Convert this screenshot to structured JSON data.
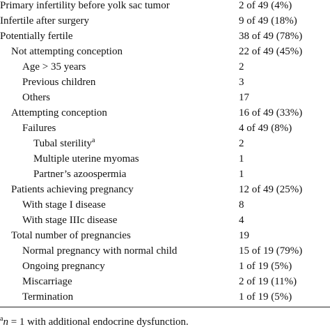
{
  "table": {
    "rows": [
      [
        "Primary infertility before yolk sac tumor",
        "2 of 49 (4%)"
      ],
      [
        "Infertile after surgery",
        "9 of 49 (18%)"
      ],
      [
        "Potentially fertile",
        "38 of 49 (78%)"
      ],
      [
        "Not attempting conception",
        "22 of 49 (45%)"
      ],
      [
        "Age > 35 years",
        "2"
      ],
      [
        "Previous children",
        "3"
      ],
      [
        "Others",
        "17"
      ],
      [
        "Attempting conception",
        "16 of 49 (33%)"
      ],
      [
        "Failures",
        "4 of 49 (8%)"
      ],
      [
        "Tubal sterility",
        "2",
        "a"
      ],
      [
        "Multiple uterine myomas",
        "1"
      ],
      [
        "Partner’s azoospermia",
        "1"
      ],
      [
        "Patients achieving pregnancy",
        "12 of 49 (25%)"
      ],
      [
        "With stage I disease",
        "8"
      ],
      [
        "With stage IIIc disease",
        "4"
      ],
      [
        "Total number of pregnancies",
        "19"
      ],
      [
        "Normal pregnancy with normal child",
        "15 of 19 (79%)"
      ],
      [
        "Ongoing pregnancy",
        "1 of 19 (5%)"
      ],
      [
        "Miscarriage",
        "2 of 19 (11%)"
      ],
      [
        "Termination",
        "1 of 19 (5%)"
      ]
    ]
  },
  "footnote": {
    "marker": "a",
    "variable": "n",
    "text": "= 1 with additional endocrine dysfunction."
  }
}
